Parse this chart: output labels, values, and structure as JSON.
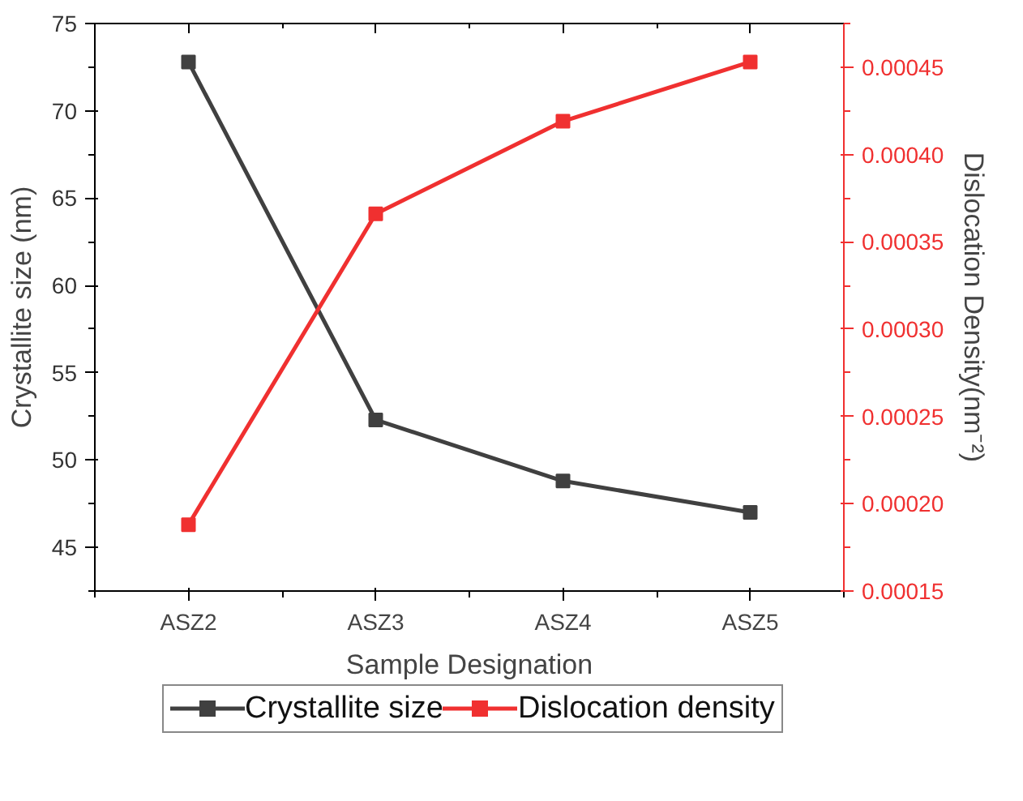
{
  "chart_data": {
    "type": "line",
    "xlabel": "Sample Designation",
    "ylabel": "Crystallite size (nm)",
    "y2label": "Dislocation Density(nm⁻²)",
    "categories": [
      "ASZ2",
      "ASZ3",
      "ASZ4",
      "ASZ5"
    ],
    "series": [
      {
        "name": "Crystallite size",
        "color": "#404040",
        "values": [
          72.8,
          52.3,
          48.8,
          47.0
        ]
      },
      {
        "name": "Dislocation density",
        "color": "#f03030",
        "axis": "y2",
        "values": [
          0.000188,
          0.000366,
          0.000419,
          0.000453
        ]
      }
    ],
    "ylim": [
      42.5,
      75
    ],
    "yticks": [
      45,
      50,
      55,
      60,
      65,
      70,
      75
    ],
    "y2lim": [
      0.00015,
      0.000475
    ],
    "y2ticks": [
      0.00015,
      {
        "value": 0.0002,
        "label": "0.00020"
      },
      0.00025,
      {
        "value": 0.0003,
        "label": "0.00030"
      },
      0.00035,
      {
        "value": 0.0004,
        "label": "0.00040"
      },
      0.00045
    ],
    "marker": "square",
    "grid": false,
    "legend": "bottom"
  }
}
